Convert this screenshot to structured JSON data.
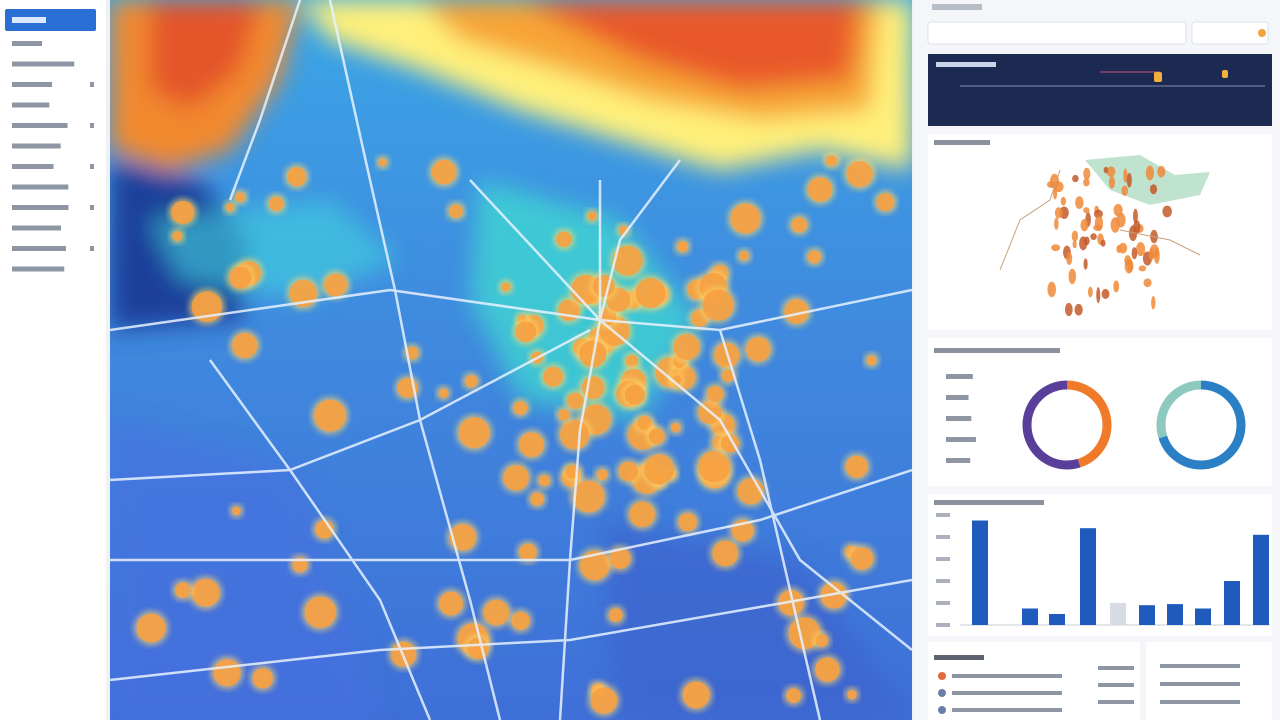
{
  "bar_chart": {
    "type": "bar",
    "values": [
      95,
      15,
      10,
      88,
      20,
      18,
      19,
      15,
      40,
      82
    ],
    "colors": [
      "#1f5bbd",
      "#1f5bbd",
      "#1f5bbd",
      "#1f5bbd",
      "#d6dbe4",
      "#1f5bbd",
      "#1f5bbd",
      "#1f5bbd",
      "#1f5bbd",
      "#1f5bbd"
    ],
    "ylim": [
      0,
      100
    ]
  },
  "donuts": [
    {
      "type": "pie",
      "values": [
        45,
        55
      ],
      "colors": [
        "#f07a2a",
        "#5a3f9a"
      ]
    },
    {
      "type": "pie",
      "values": [
        70,
        30
      ],
      "colors": [
        "#2b7fc4",
        "#8ec9c0"
      ]
    }
  ]
}
